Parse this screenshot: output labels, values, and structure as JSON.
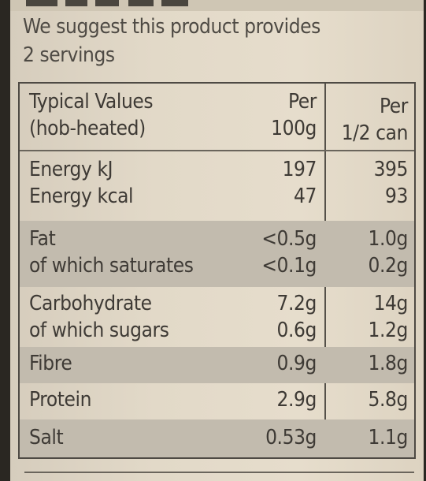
{
  "intro": {
    "line1": "We suggest this product provides",
    "line2": "2 servings"
  },
  "header": {
    "col1_line1": "Typical Values",
    "col1_line2": "(hob-heated)",
    "col2_line1": "Per",
    "col2_line2": "100g",
    "col3_line1": "Per",
    "col3_line2": "1/2 can"
  },
  "rows": {
    "energy_kj": {
      "name": "Energy kJ",
      "per100": "197",
      "perhalf": "395"
    },
    "energy_kcal": {
      "name": "Energy kcal",
      "per100": "47",
      "perhalf": "93"
    },
    "fat": {
      "name": "Fat",
      "per100": "<0.5g",
      "perhalf": "1.0g"
    },
    "saturates": {
      "name": "of which saturates",
      "per100": "<0.1g",
      "perhalf": "0.2g"
    },
    "carbohydrate": {
      "name": "Carbohydrate",
      "per100": "7.2g",
      "perhalf": "14g"
    },
    "sugars": {
      "name": "of which sugars",
      "per100": "0.6g",
      "perhalf": "1.2g"
    },
    "fibre": {
      "name": "Fibre",
      "per100": "0.9g",
      "perhalf": "1.8g"
    },
    "protein": {
      "name": "Protein",
      "per100": "2.9g",
      "perhalf": "5.8g"
    },
    "salt": {
      "name": "Salt",
      "per100": "0.53g",
      "perhalf": "1.1g"
    }
  },
  "colors": {
    "label_background": "#e2d9c8",
    "shaded_row": "#c2bbae",
    "text": "#3e3a35"
  }
}
